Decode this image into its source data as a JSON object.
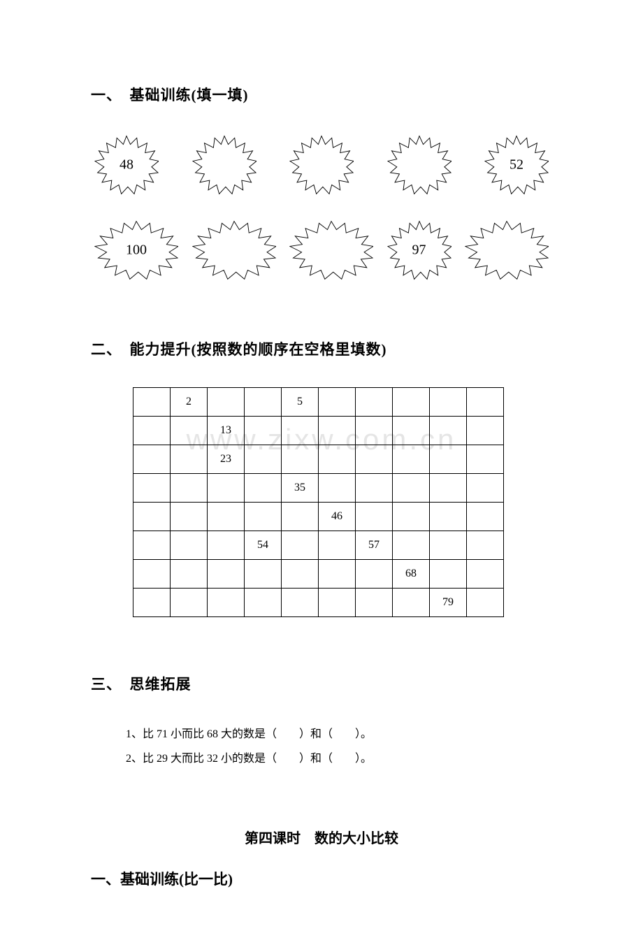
{
  "section1": {
    "heading": "一、　基础训练(填一填)",
    "row1": [
      {
        "label": "48"
      },
      {
        "label": ""
      },
      {
        "label": ""
      },
      {
        "label": ""
      },
      {
        "label": "52"
      }
    ],
    "row2": [
      {
        "label": "100",
        "wide": true
      },
      {
        "label": "",
        "wide": true
      },
      {
        "label": "",
        "wide": true
      },
      {
        "label": "97"
      },
      {
        "label": "",
        "wide": true
      }
    ]
  },
  "section2": {
    "heading": "二、　能力提升(按照数的顺序在空格里填数)",
    "table": {
      "rows": [
        [
          "",
          "2",
          "",
          "",
          "5",
          "",
          "",
          "",
          "",
          ""
        ],
        [
          "",
          "",
          "13",
          "",
          "",
          "",
          "",
          "",
          "",
          ""
        ],
        [
          "",
          "",
          "23",
          "",
          "",
          "",
          "",
          "",
          "",
          ""
        ],
        [
          "",
          "",
          "",
          "",
          "35",
          "",
          "",
          "",
          "",
          ""
        ],
        [
          "",
          "",
          "",
          "",
          "",
          "46",
          "",
          "",
          "",
          ""
        ],
        [
          "",
          "",
          "",
          "54",
          "",
          "",
          "57",
          "",
          "",
          ""
        ],
        [
          "",
          "",
          "",
          "",
          "",
          "",
          "",
          "68",
          "",
          ""
        ],
        [
          "",
          "",
          "",
          "",
          "",
          "",
          "",
          "",
          "79",
          ""
        ]
      ]
    }
  },
  "section3": {
    "heading": "三、　思维拓展",
    "lines": [
      "1、比 71 小而比 68 大的数是（　　）和（　　）。",
      "2、比 29 大而比 32 小的数是（　　）和（　　）。"
    ]
  },
  "lesson_title": "第四课时　数的大小比较",
  "section4": {
    "heading": "一、基础训练(比一比)"
  },
  "watermark": "www.zixw.com.cn",
  "styling": {
    "page_bg": "#ffffff",
    "text_color": "#000000",
    "watermark_color": "#e5e5e5",
    "heading_fontsize": 21,
    "body_fontsize": 16,
    "burst_label_fontsize": 20,
    "table_border_color": "#000000",
    "table_cell_width": 50,
    "table_cell_height": 38,
    "burst_stroke": "#000000",
    "burst_fill": "#ffffff",
    "font_family": "SimSun"
  }
}
